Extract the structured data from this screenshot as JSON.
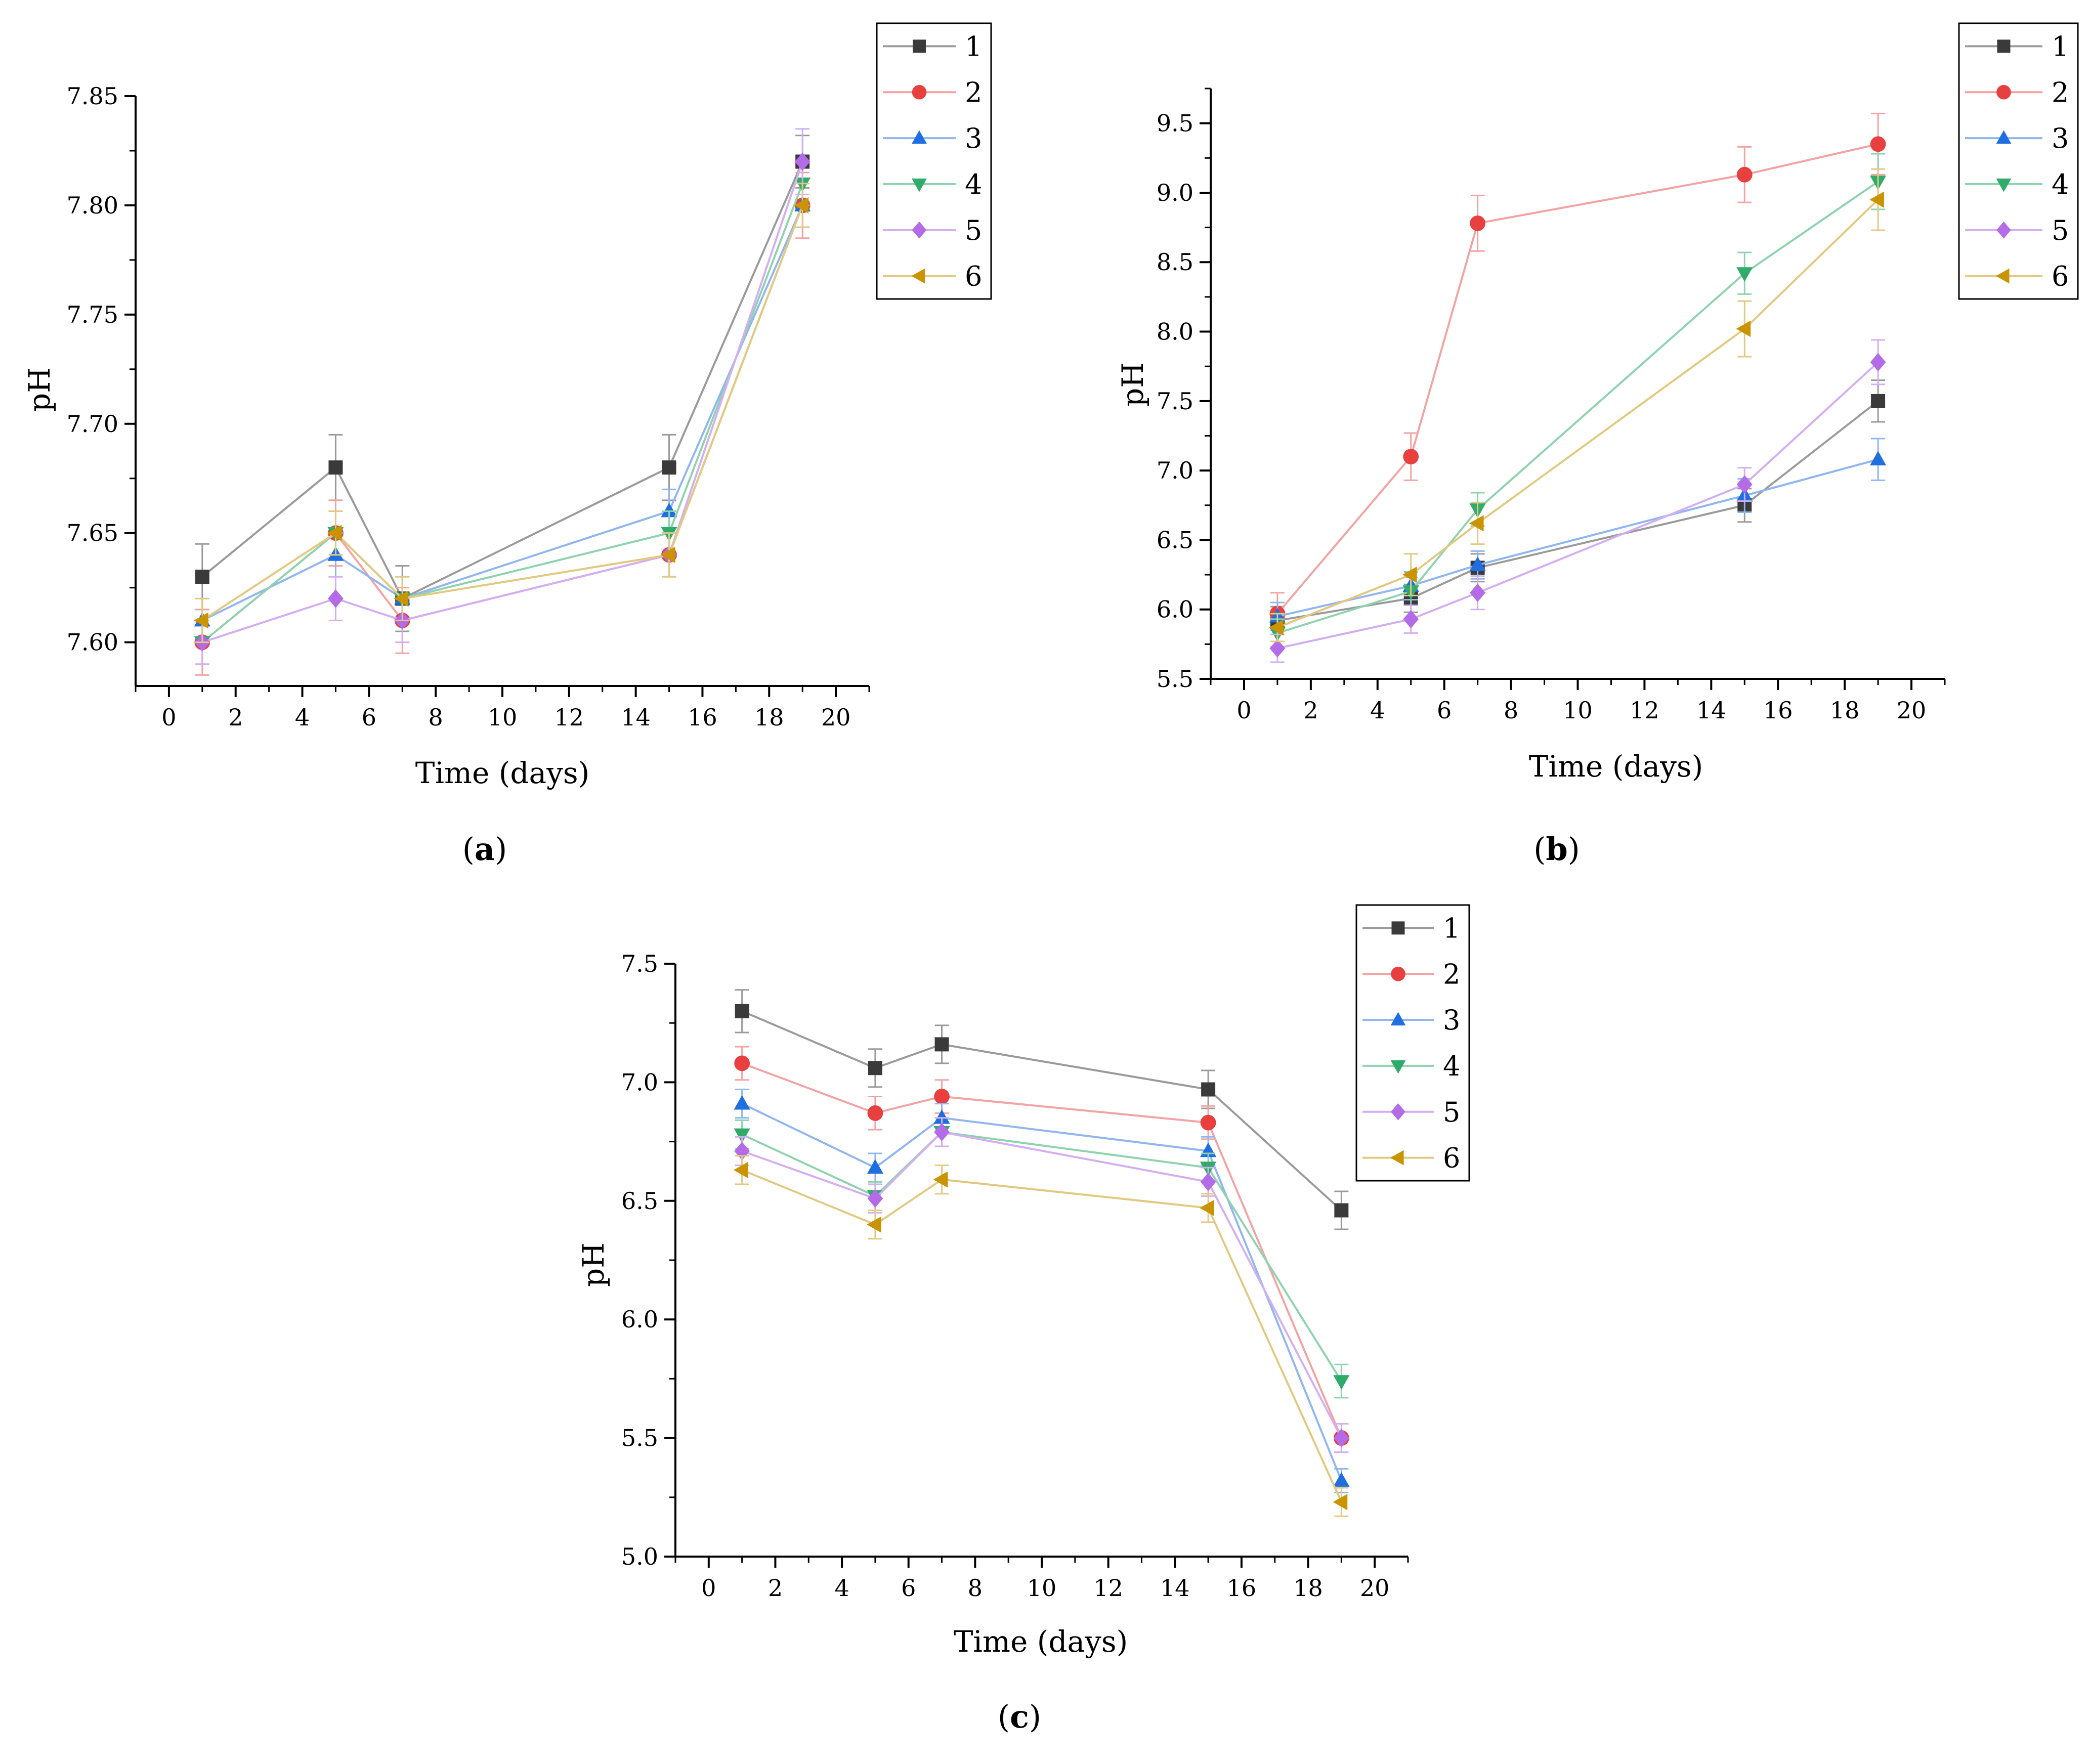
{
  "colors": {
    "series": [
      "#3a3a3a",
      "#e8403f",
      "#1f6fe0",
      "#2fab6a",
      "#b36be8",
      "#c99400"
    ],
    "series_light": [
      "#9a9a9a",
      "#f3a3a3",
      "#8fb6ef",
      "#8ed3ae",
      "#d3aef3",
      "#e2c980"
    ]
  },
  "chart_data": [
    {
      "type": "line",
      "caption_letter": "a",
      "xlabel": "Time (days)",
      "ylabel": "pH",
      "xlim": [
        -1,
        21
      ],
      "ylim": [
        7.58,
        7.85
      ],
      "xticks": [
        0,
        2,
        4,
        6,
        8,
        10,
        12,
        14,
        16,
        18,
        20
      ],
      "xtick_labels": [
        "0",
        "2",
        "4",
        "6",
        "8",
        "10",
        "12",
        "14",
        "16",
        "18",
        "20"
      ],
      "yticks": [
        7.6,
        7.65,
        7.7,
        7.75,
        7.8,
        7.85
      ],
      "ytick_labels": [
        "7.60",
        "7.65",
        "7.70",
        "7.75",
        "7.80",
        "7.85"
      ],
      "legend_position": "top-right, outside plot",
      "x": [
        1,
        5,
        7,
        15,
        19
      ],
      "series": [
        {
          "name": "1",
          "marker": "square",
          "values": [
            7.63,
            7.68,
            7.62,
            7.68,
            7.82
          ],
          "errors": [
            0.015,
            0.015,
            0.015,
            0.015,
            0.012
          ]
        },
        {
          "name": "2",
          "marker": "circle",
          "values": [
            7.6,
            7.65,
            7.61,
            7.64,
            7.8
          ],
          "errors": [
            0.015,
            0.015,
            0.015,
            0.01,
            0.015
          ]
        },
        {
          "name": "3",
          "marker": "triangle-up",
          "values": [
            7.61,
            7.64,
            7.62,
            7.66,
            7.8
          ],
          "errors": [
            0.01,
            0.01,
            0.01,
            0.01,
            0.01
          ]
        },
        {
          "name": "4",
          "marker": "triangle-down",
          "values": [
            7.6,
            7.65,
            7.62,
            7.65,
            7.81
          ],
          "errors": [
            0.01,
            0.01,
            0.01,
            0.01,
            0.01
          ]
        },
        {
          "name": "5",
          "marker": "diamond",
          "values": [
            7.6,
            7.62,
            7.61,
            7.64,
            7.82
          ],
          "errors": [
            0.01,
            0.01,
            0.01,
            0.01,
            0.015
          ]
        },
        {
          "name": "6",
          "marker": "triangle-left",
          "values": [
            7.61,
            7.65,
            7.62,
            7.64,
            7.8
          ],
          "errors": [
            0.01,
            0.01,
            0.01,
            0.01,
            0.01
          ]
        }
      ]
    },
    {
      "type": "line",
      "caption_letter": "b",
      "xlabel": "Time (days)",
      "ylabel": "pH",
      "xlim": [
        -1,
        21
      ],
      "ylim": [
        5.5,
        9.75
      ],
      "xticks": [
        0,
        2,
        4,
        6,
        8,
        10,
        12,
        14,
        16,
        18,
        20
      ],
      "xtick_labels": [
        "0",
        "2",
        "4",
        "6",
        "8",
        "10",
        "12",
        "14",
        "16",
        "18",
        "20"
      ],
      "yticks": [
        5.5,
        6.0,
        6.5,
        7.0,
        7.5,
        8.0,
        8.5,
        9.0,
        9.5
      ],
      "ytick_labels": [
        "5.5",
        "6.0",
        "6.5",
        "7.0",
        "7.5",
        "8.0",
        "8.5",
        "9.0",
        "9.5"
      ],
      "legend_position": "top-right, outside plot",
      "x": [
        1,
        5,
        7,
        15,
        19
      ],
      "series": [
        {
          "name": "1",
          "marker": "square",
          "values": [
            5.92,
            6.08,
            6.3,
            6.75,
            7.5
          ],
          "errors": [
            0.1,
            0.1,
            0.1,
            0.12,
            0.15
          ]
        },
        {
          "name": "2",
          "marker": "circle",
          "values": [
            5.97,
            7.1,
            8.78,
            9.13,
            9.35
          ],
          "errors": [
            0.15,
            0.17,
            0.2,
            0.2,
            0.22
          ]
        },
        {
          "name": "3",
          "marker": "triangle-up",
          "values": [
            5.95,
            6.17,
            6.32,
            6.82,
            7.08
          ],
          "errors": [
            0.1,
            0.1,
            0.1,
            0.12,
            0.15
          ]
        },
        {
          "name": "4",
          "marker": "triangle-down",
          "values": [
            5.83,
            6.13,
            6.72,
            8.42,
            9.08
          ],
          "errors": [
            0.1,
            0.1,
            0.12,
            0.15,
            0.2
          ]
        },
        {
          "name": "5",
          "marker": "diamond",
          "values": [
            5.72,
            5.93,
            6.12,
            6.9,
            7.78
          ],
          "errors": [
            0.1,
            0.1,
            0.12,
            0.12,
            0.16
          ]
        },
        {
          "name": "6",
          "marker": "triangle-left",
          "values": [
            5.87,
            6.25,
            6.62,
            8.02,
            8.95
          ],
          "errors": [
            0.1,
            0.15,
            0.15,
            0.2,
            0.22
          ]
        }
      ]
    },
    {
      "type": "line",
      "caption_letter": "c",
      "xlabel": "Time (days)",
      "ylabel": "pH",
      "xlim": [
        -1,
        21
      ],
      "ylim": [
        5.0,
        7.5
      ],
      "xticks": [
        0,
        2,
        4,
        6,
        8,
        10,
        12,
        14,
        16,
        18,
        20
      ],
      "xtick_labels": [
        "0",
        "2",
        "4",
        "6",
        "8",
        "10",
        "12",
        "14",
        "16",
        "18",
        "20"
      ],
      "yticks": [
        5.0,
        5.5,
        6.0,
        6.5,
        7.0,
        7.5
      ],
      "ytick_labels": [
        "5.0",
        "5.5",
        "6.0",
        "6.5",
        "7.0",
        "7.5"
      ],
      "legend_position": "top-right, outside plot",
      "x": [
        1,
        5,
        7,
        15,
        19
      ],
      "series": [
        {
          "name": "1",
          "marker": "square",
          "values": [
            7.3,
            7.06,
            7.16,
            6.97,
            6.46
          ],
          "errors": [
            0.09,
            0.08,
            0.08,
            0.08,
            0.08
          ]
        },
        {
          "name": "2",
          "marker": "circle",
          "values": [
            7.08,
            6.87,
            6.94,
            6.83,
            5.5
          ],
          "errors": [
            0.07,
            0.07,
            0.07,
            0.07,
            0.06
          ]
        },
        {
          "name": "3",
          "marker": "triangle-up",
          "values": [
            6.91,
            6.64,
            6.85,
            6.71,
            5.32
          ],
          "errors": [
            0.06,
            0.06,
            0.06,
            0.06,
            0.05
          ]
        },
        {
          "name": "4",
          "marker": "triangle-down",
          "values": [
            6.78,
            6.52,
            6.79,
            6.64,
            5.74
          ],
          "errors": [
            0.06,
            0.06,
            0.06,
            0.06,
            0.07
          ]
        },
        {
          "name": "5",
          "marker": "diamond",
          "values": [
            6.71,
            6.51,
            6.79,
            6.58,
            5.5
          ],
          "errors": [
            0.06,
            0.06,
            0.06,
            0.06,
            0.06
          ]
        },
        {
          "name": "6",
          "marker": "triangle-left",
          "values": [
            6.63,
            6.4,
            6.59,
            6.47,
            5.23
          ],
          "errors": [
            0.06,
            0.06,
            0.06,
            0.06,
            0.06
          ]
        }
      ]
    }
  ]
}
